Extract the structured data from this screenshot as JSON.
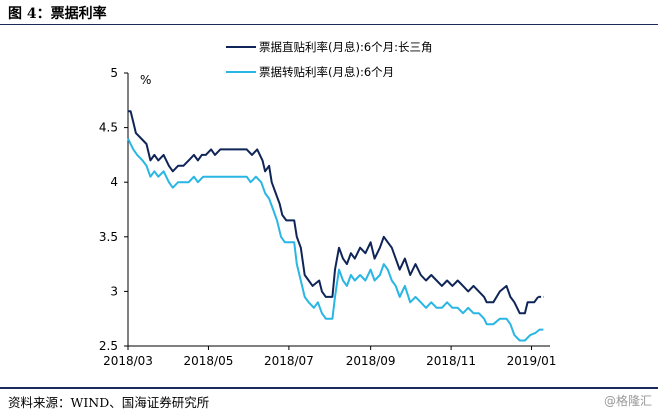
{
  "header": {
    "title": "图 4：票据利率"
  },
  "footer": {
    "source": "资料来源：WIND、国海证券研究所",
    "watermark": "格隆汇"
  },
  "chart_data": {
    "type": "line",
    "ylabel": "%",
    "ylim": [
      2.5,
      5
    ],
    "yticks": [
      "5",
      "4.5",
      "4",
      "3.5",
      "3",
      "2.5"
    ],
    "xlim": [
      "2018-03-01",
      "2019-01-15"
    ],
    "xticks": [
      {
        "date": "2018-03-01",
        "label": "2018/03"
      },
      {
        "date": "2018-05-01",
        "label": "2018/05"
      },
      {
        "date": "2018-07-01",
        "label": "2018/07"
      },
      {
        "date": "2018-09-01",
        "label": "2018/09"
      },
      {
        "date": "2018-11-01",
        "label": "2018/11"
      },
      {
        "date": "2019-01-01",
        "label": "2019/01"
      }
    ],
    "legend_position": "top-right",
    "series": [
      {
        "name": "票据直贴利率(月息):6个月:长三角",
        "color": "#0f2557",
        "dashed_tail_from": "2019-01-06",
        "points": [
          [
            "2018-03-01",
            4.65
          ],
          [
            "2018-03-03",
            4.65
          ],
          [
            "2018-03-05",
            4.55
          ],
          [
            "2018-03-07",
            4.45
          ],
          [
            "2018-03-11",
            4.4
          ],
          [
            "2018-03-15",
            4.35
          ],
          [
            "2018-03-18",
            4.2
          ],
          [
            "2018-03-21",
            4.25
          ],
          [
            "2018-03-24",
            4.2
          ],
          [
            "2018-03-28",
            4.25
          ],
          [
            "2018-04-01",
            4.15
          ],
          [
            "2018-04-04",
            4.1
          ],
          [
            "2018-04-08",
            4.15
          ],
          [
            "2018-04-12",
            4.15
          ],
          [
            "2018-04-16",
            4.2
          ],
          [
            "2018-04-20",
            4.25
          ],
          [
            "2018-04-23",
            4.2
          ],
          [
            "2018-04-26",
            4.25
          ],
          [
            "2018-04-29",
            4.25
          ],
          [
            "2018-05-03",
            4.3
          ],
          [
            "2018-05-06",
            4.25
          ],
          [
            "2018-05-10",
            4.3
          ],
          [
            "2018-05-25",
            4.3
          ],
          [
            "2018-05-30",
            4.3
          ],
          [
            "2018-06-03",
            4.25
          ],
          [
            "2018-06-07",
            4.3
          ],
          [
            "2018-06-11",
            4.2
          ],
          [
            "2018-06-13",
            4.1
          ],
          [
            "2018-06-16",
            4.15
          ],
          [
            "2018-06-18",
            4.0
          ],
          [
            "2018-06-21",
            3.9
          ],
          [
            "2018-06-24",
            3.8
          ],
          [
            "2018-06-26",
            3.7
          ],
          [
            "2018-06-29",
            3.65
          ],
          [
            "2018-07-05",
            3.65
          ],
          [
            "2018-07-07",
            3.5
          ],
          [
            "2018-07-10",
            3.4
          ],
          [
            "2018-07-13",
            3.15
          ],
          [
            "2018-07-16",
            3.1
          ],
          [
            "2018-07-19",
            3.05
          ],
          [
            "2018-07-24",
            3.1
          ],
          [
            "2018-07-26",
            3.0
          ],
          [
            "2018-07-29",
            2.95
          ],
          [
            "2018-08-03",
            2.95
          ],
          [
            "2018-08-05",
            3.2
          ],
          [
            "2018-08-08",
            3.4
          ],
          [
            "2018-08-11",
            3.3
          ],
          [
            "2018-08-14",
            3.25
          ],
          [
            "2018-08-17",
            3.35
          ],
          [
            "2018-08-20",
            3.3
          ],
          [
            "2018-08-24",
            3.4
          ],
          [
            "2018-08-28",
            3.35
          ],
          [
            "2018-09-01",
            3.45
          ],
          [
            "2018-09-04",
            3.3
          ],
          [
            "2018-09-08",
            3.4
          ],
          [
            "2018-09-11",
            3.5
          ],
          [
            "2018-09-14",
            3.45
          ],
          [
            "2018-09-17",
            3.4
          ],
          [
            "2018-09-20",
            3.3
          ],
          [
            "2018-09-23",
            3.2
          ],
          [
            "2018-09-27",
            3.3
          ],
          [
            "2018-10-01",
            3.15
          ],
          [
            "2018-10-05",
            3.25
          ],
          [
            "2018-10-09",
            3.15
          ],
          [
            "2018-10-13",
            3.1
          ],
          [
            "2018-10-17",
            3.15
          ],
          [
            "2018-10-21",
            3.1
          ],
          [
            "2018-10-25",
            3.05
          ],
          [
            "2018-10-29",
            3.1
          ],
          [
            "2018-11-02",
            3.05
          ],
          [
            "2018-11-06",
            3.1
          ],
          [
            "2018-11-10",
            3.05
          ],
          [
            "2018-11-14",
            3.0
          ],
          [
            "2018-11-18",
            3.05
          ],
          [
            "2018-11-22",
            3.0
          ],
          [
            "2018-11-26",
            2.95
          ],
          [
            "2018-11-28",
            2.9
          ],
          [
            "2018-12-03",
            2.9
          ],
          [
            "2018-12-08",
            3.0
          ],
          [
            "2018-12-13",
            3.05
          ],
          [
            "2018-12-16",
            2.95
          ],
          [
            "2018-12-19",
            2.9
          ],
          [
            "2018-12-23",
            2.8
          ],
          [
            "2018-12-27",
            2.8
          ],
          [
            "2018-12-29",
            2.9
          ],
          [
            "2019-01-03",
            2.9
          ],
          [
            "2019-01-06",
            2.95
          ],
          [
            "2019-01-10",
            2.95
          ]
        ]
      },
      {
        "name": "票据转贴利率(月息):6个月",
        "color": "#29b6e4",
        "points": [
          [
            "2018-03-01",
            4.4
          ],
          [
            "2018-03-03",
            4.35
          ],
          [
            "2018-03-05",
            4.3
          ],
          [
            "2018-03-08",
            4.25
          ],
          [
            "2018-03-12",
            4.2
          ],
          [
            "2018-03-15",
            4.15
          ],
          [
            "2018-03-18",
            4.05
          ],
          [
            "2018-03-21",
            4.1
          ],
          [
            "2018-03-24",
            4.05
          ],
          [
            "2018-03-28",
            4.1
          ],
          [
            "2018-04-01",
            4.0
          ],
          [
            "2018-04-04",
            3.95
          ],
          [
            "2018-04-08",
            4.0
          ],
          [
            "2018-04-12",
            4.0
          ],
          [
            "2018-04-16",
            4.0
          ],
          [
            "2018-04-20",
            4.05
          ],
          [
            "2018-04-23",
            4.0
          ],
          [
            "2018-04-27",
            4.05
          ],
          [
            "2018-05-30",
            4.05
          ],
          [
            "2018-06-02",
            4.0
          ],
          [
            "2018-06-06",
            4.05
          ],
          [
            "2018-06-10",
            4.0
          ],
          [
            "2018-06-13",
            3.9
          ],
          [
            "2018-06-16",
            3.85
          ],
          [
            "2018-06-19",
            3.75
          ],
          [
            "2018-06-22",
            3.65
          ],
          [
            "2018-06-25",
            3.5
          ],
          [
            "2018-06-28",
            3.45
          ],
          [
            "2018-07-05",
            3.45
          ],
          [
            "2018-07-07",
            3.25
          ],
          [
            "2018-07-10",
            3.1
          ],
          [
            "2018-07-13",
            2.95
          ],
          [
            "2018-07-16",
            2.9
          ],
          [
            "2018-07-20",
            2.85
          ],
          [
            "2018-07-23",
            2.9
          ],
          [
            "2018-07-26",
            2.8
          ],
          [
            "2018-07-29",
            2.75
          ],
          [
            "2018-08-03",
            2.75
          ],
          [
            "2018-08-05",
            2.95
          ],
          [
            "2018-08-08",
            3.2
          ],
          [
            "2018-08-11",
            3.1
          ],
          [
            "2018-08-14",
            3.05
          ],
          [
            "2018-08-17",
            3.15
          ],
          [
            "2018-08-20",
            3.1
          ],
          [
            "2018-08-24",
            3.15
          ],
          [
            "2018-08-28",
            3.1
          ],
          [
            "2018-09-01",
            3.2
          ],
          [
            "2018-09-04",
            3.1
          ],
          [
            "2018-09-08",
            3.15
          ],
          [
            "2018-09-11",
            3.25
          ],
          [
            "2018-09-14",
            3.2
          ],
          [
            "2018-09-17",
            3.1
          ],
          [
            "2018-09-20",
            3.05
          ],
          [
            "2018-09-23",
            2.95
          ],
          [
            "2018-09-27",
            3.05
          ],
          [
            "2018-10-01",
            2.9
          ],
          [
            "2018-10-05",
            2.95
          ],
          [
            "2018-10-09",
            2.9
          ],
          [
            "2018-10-13",
            2.85
          ],
          [
            "2018-10-17",
            2.9
          ],
          [
            "2018-10-21",
            2.85
          ],
          [
            "2018-10-25",
            2.85
          ],
          [
            "2018-10-29",
            2.9
          ],
          [
            "2018-11-02",
            2.85
          ],
          [
            "2018-11-06",
            2.85
          ],
          [
            "2018-11-10",
            2.8
          ],
          [
            "2018-11-14",
            2.85
          ],
          [
            "2018-11-18",
            2.8
          ],
          [
            "2018-11-22",
            2.8
          ],
          [
            "2018-11-26",
            2.75
          ],
          [
            "2018-11-28",
            2.7
          ],
          [
            "2018-12-03",
            2.7
          ],
          [
            "2018-12-08",
            2.75
          ],
          [
            "2018-12-13",
            2.75
          ],
          [
            "2018-12-16",
            2.7
          ],
          [
            "2018-12-19",
            2.6
          ],
          [
            "2018-12-23",
            2.55
          ],
          [
            "2018-12-27",
            2.55
          ],
          [
            "2018-12-31",
            2.6
          ],
          [
            "2019-01-04",
            2.62
          ],
          [
            "2019-01-07",
            2.65
          ],
          [
            "2019-01-10",
            2.65
          ]
        ]
      }
    ]
  }
}
